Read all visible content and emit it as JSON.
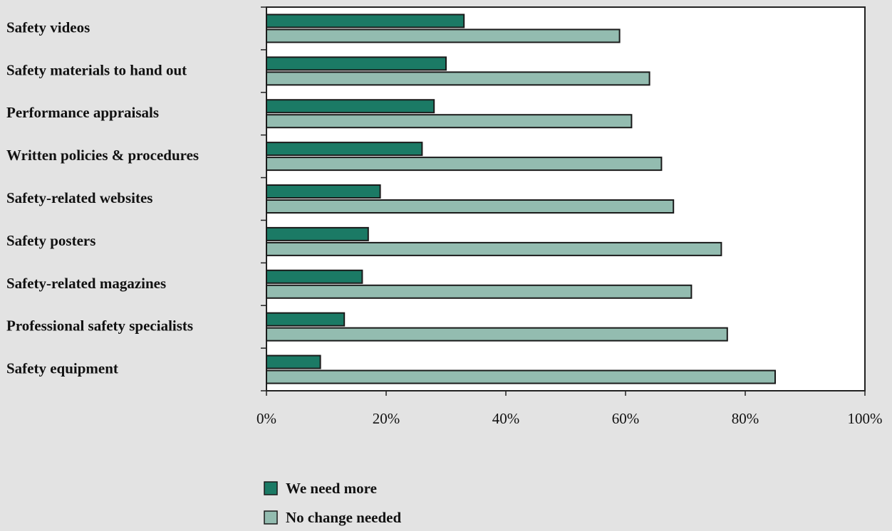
{
  "chart_data": {
    "type": "bar",
    "orientation": "horizontal",
    "categories": [
      "Safety videos",
      "Safety materials to hand out",
      "Performance appraisals",
      "Written policies & procedures",
      "Safety-related websites",
      "Safety posters",
      "Safety-related magazines",
      "Professional safety specialists",
      "Safety equipment"
    ],
    "series": [
      {
        "name": "We need more",
        "color": "#1b7a65",
        "values": [
          33,
          30,
          28,
          26,
          19,
          17,
          16,
          13,
          9
        ]
      },
      {
        "name": "No change needed",
        "color": "#93bcb0",
        "values": [
          59,
          64,
          61,
          66,
          68,
          76,
          71,
          77,
          85
        ]
      }
    ],
    "xlim": [
      0,
      100
    ],
    "x_ticks": [
      "0%",
      "20%",
      "40%",
      "60%",
      "80%",
      "100%"
    ],
    "grid": false,
    "legend_position": "bottom"
  }
}
